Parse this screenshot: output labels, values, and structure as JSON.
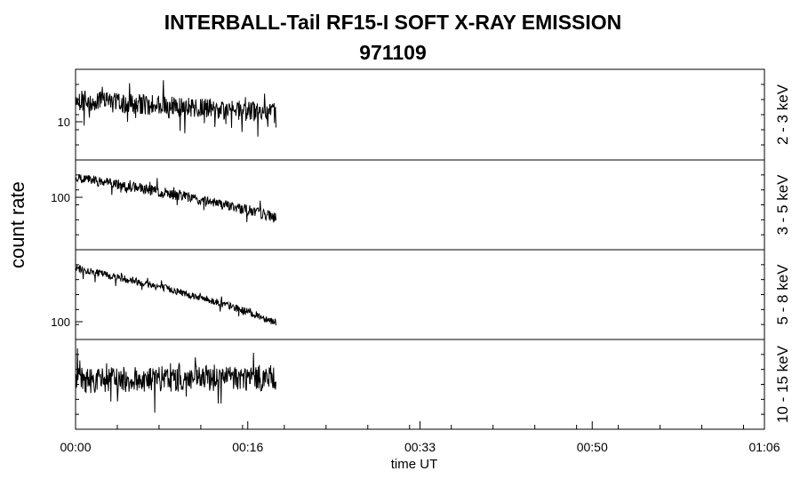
{
  "chart_data": {
    "type": "line",
    "title": "INTERBALL-Tail RF15-I SOFT X-RAY EMISSION",
    "subtitle": "971109",
    "ylabel": "count rate",
    "xlabel": "time UT",
    "x_ticks": [
      "00:00",
      "00:16",
      "00:33",
      "00:50",
      "01:06"
    ],
    "x_range_minutes": [
      0,
      66
    ],
    "data_end_minute": 19.2,
    "panels": [
      {
        "band": "2 - 3 keV",
        "y_tick_labels": [
          "10"
        ],
        "trend": {
          "start": 11.8,
          "end": 10.0
        },
        "y_range": [
          5.5,
          17.5
        ]
      },
      {
        "band": "3 - 5 keV",
        "y_tick_labels": [
          "100"
        ],
        "trend": {
          "start": 103,
          "end": 57
        },
        "y_range": [
          35,
          135
        ]
      },
      {
        "band": "5 - 8 keV",
        "y_tick_labels": [
          "100"
        ],
        "trend": {
          "start": 210,
          "end": 103
        },
        "y_range": [
          82,
          270
        ]
      },
      {
        "band": "10 - 15 keV",
        "y_tick_labels": [],
        "trend": {
          "start": 2.3,
          "end": 2.4
        },
        "y_range": [
          1.0,
          4.6
        ]
      }
    ],
    "grid": false,
    "line_color": "#000000"
  }
}
